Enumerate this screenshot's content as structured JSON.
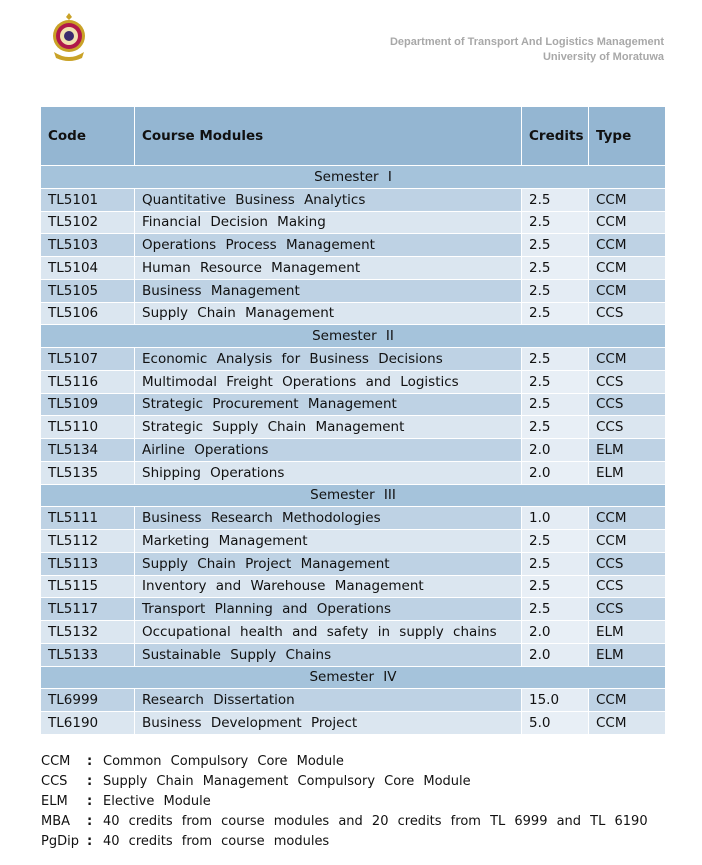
{
  "header": {
    "department": "Department of Transport And Logistics Management",
    "university": "University of Moratuwa",
    "logo_icon": "university-crest-icon"
  },
  "table": {
    "columns": [
      "Code",
      "Course Modules",
      "Credits",
      "Type"
    ],
    "sections": [
      {
        "title": "Semester I",
        "rows": [
          {
            "code": "TL5101",
            "module": "Quantitative Business Analytics",
            "credits": "2.5",
            "type": "CCM"
          },
          {
            "code": "TL5102",
            "module": "Financial Decision Making",
            "credits": "2.5",
            "type": "CCM"
          },
          {
            "code": "TL5103",
            "module": "Operations Process Management",
            "credits": "2.5",
            "type": "CCM"
          },
          {
            "code": "TL5104",
            "module": "Human Resource Management",
            "credits": "2.5",
            "type": "CCM"
          },
          {
            "code": "TL5105",
            "module": "Business Management",
            "credits": "2.5",
            "type": "CCM"
          },
          {
            "code": "TL5106",
            "module": "Supply Chain Management",
            "credits": "2.5",
            "type": "CCS"
          }
        ]
      },
      {
        "title": "Semester II",
        "rows": [
          {
            "code": "TL5107",
            "module": "Economic Analysis for Business Decisions",
            "credits": "2.5",
            "type": "CCM"
          },
          {
            "code": "TL5116",
            "module": "Multimodal Freight Operations and Logistics",
            "credits": "2.5",
            "type": "CCS"
          },
          {
            "code": "TL5109",
            "module": "Strategic Procurement Management",
            "credits": "2.5",
            "type": "CCS"
          },
          {
            "code": "TL5110",
            "module": "Strategic Supply Chain Management",
            "credits": "2.5",
            "type": "CCS"
          },
          {
            "code": "TL5134",
            "module": "Airline Operations",
            "credits": "2.0",
            "type": "ELM"
          },
          {
            "code": "TL5135",
            "module": "Shipping Operations",
            "credits": "2.0",
            "type": "ELM"
          }
        ]
      },
      {
        "title": "Semester III",
        "rows": [
          {
            "code": "TL5111",
            "module": "Business Research Methodologies",
            "credits": "1.0",
            "type": "CCM"
          },
          {
            "code": "TL5112",
            "module": "Marketing Management",
            "credits": "2.5",
            "type": "CCM"
          },
          {
            "code": "TL5113",
            "module": "Supply Chain Project Management",
            "credits": "2.5",
            "type": "CCS"
          },
          {
            "code": "TL5115",
            "module": "Inventory and Warehouse Management",
            "credits": "2.5",
            "type": "CCS"
          },
          {
            "code": "TL5117",
            "module": "Transport Planning and Operations",
            "credits": "2.5",
            "type": "CCS"
          },
          {
            "code": "TL5132",
            "module": "Occupational health and safety in supply chains",
            "credits": "2.0",
            "type": "ELM"
          },
          {
            "code": "TL5133",
            "module": "Sustainable  Supply Chains",
            "credits": "2.0",
            "type": "ELM"
          }
        ]
      },
      {
        "title": "Semester IV",
        "rows": [
          {
            "code": "TL6999",
            "module": "Research Dissertation",
            "credits": "15.0",
            "type": "CCM"
          },
          {
            "code": "TL6190",
            "module": "Business Development Project",
            "credits": "5.0",
            "type": "CCM"
          }
        ]
      }
    ]
  },
  "legend": [
    {
      "abbr": "CCM",
      "text": "Common Compulsory Core Module"
    },
    {
      "abbr": "CCS",
      "text": "Supply Chain Management Compulsory Core Module"
    },
    {
      "abbr": "ELM",
      "text": "Elective Module"
    },
    {
      "abbr": "MBA",
      "text": "40 credits from course modules and 20 credits from TL 6999 and TL 6190"
    },
    {
      "abbr": "PgDip",
      "text": "40 credits from course modules"
    }
  ],
  "legend_separator": ":"
}
